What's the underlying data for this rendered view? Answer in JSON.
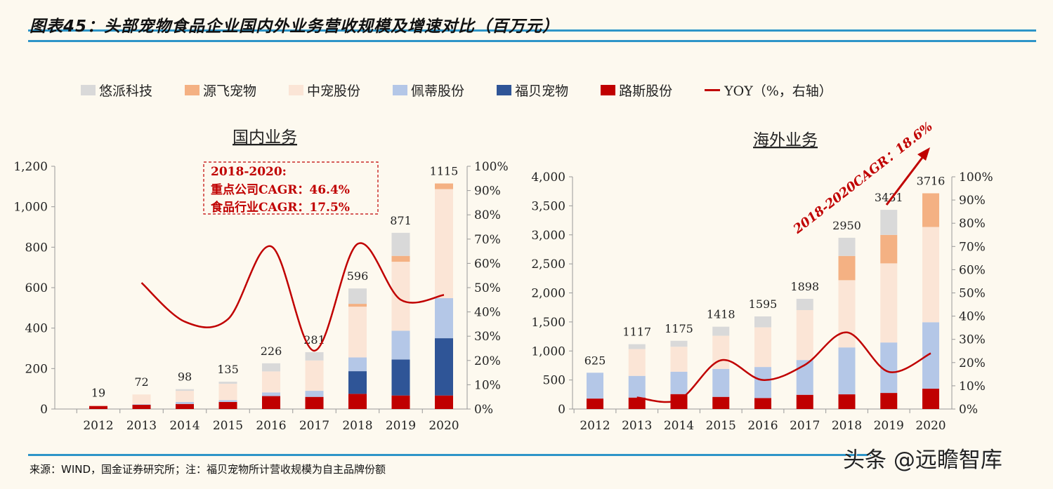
{
  "title": "图表45：头部宠物食品企业国内外业务营收规模及增速对比（百万元）",
  "footer": "来源：WIND，国金证券研究所；注：福贝宠物所计营收规模为自主品牌份额",
  "watermark": "头条 @远瞻智库",
  "legend": [
    {
      "label": "悠派科技",
      "color": "#d9d9d9",
      "kind": "bar"
    },
    {
      "label": "源飞宠物",
      "color": "#f4b183",
      "kind": "bar"
    },
    {
      "label": "中宠股份",
      "color": "#fbe5d6",
      "kind": "bar"
    },
    {
      "label": "佩蒂股份",
      "color": "#b4c7e7",
      "kind": "bar"
    },
    {
      "label": "福贝宠物",
      "color": "#2f5597",
      "kind": "bar"
    },
    {
      "label": "路斯股份",
      "color": "#c00000",
      "kind": "bar"
    },
    {
      "label": "YOY（%，右轴）",
      "color": "#c00000",
      "kind": "line"
    }
  ],
  "chart_data": [
    {
      "type": "bar",
      "stacked": true,
      "title": "国内业务",
      "categories": [
        "2012",
        "2013",
        "2014",
        "2015",
        "2016",
        "2017",
        "2018",
        "2019",
        "2020"
      ],
      "ylim": [
        0,
        1200
      ],
      "yticks": [
        "0",
        "200",
        "400",
        "600",
        "800",
        "1,000",
        "1,200"
      ],
      "y2lim": [
        0,
        100
      ],
      "y2ticks": [
        "0%",
        "10%",
        "20%",
        "30%",
        "40%",
        "50%",
        "60%",
        "70%",
        "80%",
        "90%",
        "100%"
      ],
      "totals": [
        19,
        72,
        98,
        135,
        226,
        281,
        596,
        871,
        1115
      ],
      "series": [
        {
          "name": "路斯股份",
          "values": [
            15,
            21,
            25,
            35,
            64,
            60,
            75,
            67,
            67
          ]
        },
        {
          "name": "福贝宠物",
          "values": [
            0,
            0,
            0,
            0,
            0,
            0,
            112,
            178,
            283
          ]
        },
        {
          "name": "佩蒂股份",
          "values": [
            0,
            3,
            10,
            9,
            18,
            30,
            68,
            142,
            198
          ]
        },
        {
          "name": "中宠股份",
          "values": [
            4,
            48,
            55,
            81,
            104,
            150,
            251,
            341,
            539
          ]
        },
        {
          "name": "源飞宠物",
          "values": [
            0,
            0,
            0,
            0,
            0,
            0,
            14,
            29,
            28
          ]
        },
        {
          "name": "悠派科技",
          "values": [
            0,
            0,
            8,
            10,
            40,
            41,
            76,
            114,
            0
          ]
        }
      ],
      "yoy": {
        "name": "YOY（%，右轴）",
        "values": [
          null,
          52,
          36,
          37,
          67,
          24,
          68,
          45,
          47
        ]
      },
      "annotation": {
        "line1": "2018-2020:",
        "line2": "重点公司CAGR：46.4%",
        "line3": "食品行业CAGR：17.5%"
      }
    },
    {
      "type": "bar",
      "stacked": true,
      "title": "海外业务",
      "categories": [
        "2012",
        "2013",
        "2014",
        "2015",
        "2016",
        "2017",
        "2018",
        "2019",
        "2020"
      ],
      "ylim": [
        0,
        4000
      ],
      "yticks": [
        "0",
        "500",
        "1,000",
        "1,500",
        "2,000",
        "2,500",
        "3,000",
        "3,500",
        "4,000"
      ],
      "y2lim": [
        0,
        100
      ],
      "y2ticks": [
        "0%",
        "10%",
        "20%",
        "30%",
        "40%",
        "50%",
        "60%",
        "70%",
        "80%",
        "90%",
        "100%"
      ],
      "totals": [
        625,
        1117,
        1175,
        1418,
        1595,
        1898,
        2950,
        3431,
        3716
      ],
      "series": [
        {
          "name": "路斯股份",
          "values": [
            180,
            197,
            257,
            209,
            189,
            245,
            253,
            277,
            350
          ]
        },
        {
          "name": "福贝宠物",
          "values": [
            0,
            0,
            0,
            0,
            0,
            0,
            0,
            0,
            0
          ]
        },
        {
          "name": "佩蒂股份",
          "values": [
            445,
            374,
            386,
            482,
            535,
            599,
            808,
            869,
            1145
          ]
        },
        {
          "name": "中宠股份",
          "values": [
            0,
            462,
            430,
            571,
            683,
            860,
            1158,
            1363,
            1641
          ]
        },
        {
          "name": "源飞宠物",
          "values": [
            0,
            0,
            0,
            0,
            0,
            0,
            418,
            490,
            580
          ]
        },
        {
          "name": "悠派科技",
          "values": [
            0,
            84,
            102,
            156,
            188,
            194,
            313,
            432,
            0
          ]
        }
      ],
      "yoy": {
        "name": "YOY（%，右轴）",
        "values": [
          null,
          5,
          4,
          21,
          12.5,
          19,
          33,
          16,
          24
        ]
      },
      "annotation": {
        "text": "2018-2020CAGR：18.6%"
      }
    }
  ]
}
